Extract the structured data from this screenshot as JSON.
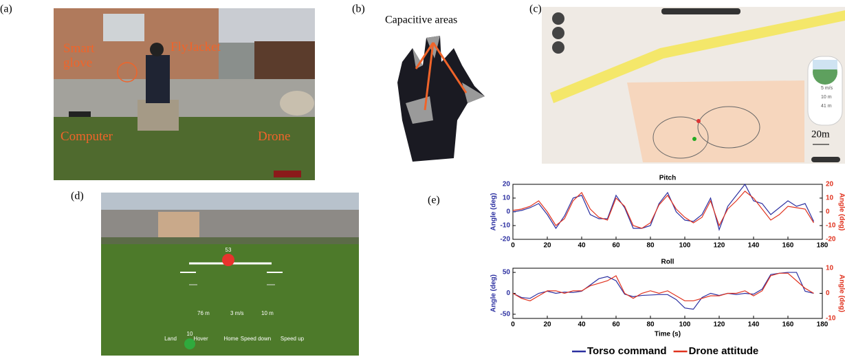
{
  "panels": {
    "a": {
      "label": "(a)",
      "annotations": [
        "Smart glove",
        "FlyJacket",
        "Computer",
        "Drone"
      ]
    },
    "b": {
      "label": "(b)",
      "annotation": "Capacitive areas"
    },
    "c": {
      "label": "(c)",
      "scale": "20m",
      "speed": "5 m/s",
      "altitude": "10 m",
      "distance": "41 m"
    },
    "d": {
      "label": "(d)",
      "pitch_value": "53",
      "distance": "76 m",
      "speed": "3 m/s",
      "altitude": "10 m",
      "counter": "10",
      "buttons": [
        "Land",
        "Hover",
        "Home",
        "Speed down",
        "Speed up"
      ]
    },
    "e": {
      "label": "(e)"
    }
  },
  "chart_data": [
    {
      "type": "line",
      "title": "Pitch",
      "ylabel": "Angle (deg)",
      "y2label": "Angle (deg)",
      "xlim": [
        0,
        180
      ],
      "xticks": [
        0,
        20,
        40,
        60,
        80,
        100,
        120,
        140,
        160,
        180
      ],
      "ylim": [
        -20,
        20
      ],
      "yticks": [
        -20,
        -10,
        0,
        10,
        20
      ],
      "y2lim": [
        -20,
        20
      ],
      "y2ticks": [
        -20,
        -10,
        0,
        10,
        20
      ],
      "x": [
        0,
        5,
        10,
        15,
        20,
        25,
        30,
        35,
        40,
        45,
        50,
        55,
        60,
        65,
        70,
        75,
        80,
        85,
        90,
        95,
        100,
        105,
        110,
        115,
        120,
        125,
        130,
        135,
        140,
        145,
        150,
        155,
        160,
        165,
        170,
        175
      ],
      "series": [
        {
          "name": "Torso command",
          "color": "#2b2fa0",
          "values": [
            0,
            1,
            3,
            6,
            -2,
            -12,
            -3,
            10,
            12,
            -2,
            -5,
            -5,
            12,
            3,
            -12,
            -12,
            -10,
            6,
            14,
            0,
            -6,
            -7,
            -2,
            10,
            -13,
            4,
            12,
            20,
            8,
            6,
            -2,
            3,
            8,
            4,
            6,
            -7
          ]
        },
        {
          "name": "Drone attitude",
          "color": "#e0321e",
          "axis": "y2",
          "values": [
            1,
            2,
            4,
            8,
            0,
            -10,
            -5,
            8,
            14,
            2,
            -4,
            -6,
            10,
            4,
            -10,
            -12,
            -8,
            5,
            12,
            2,
            -4,
            -8,
            -4,
            8,
            -10,
            2,
            8,
            15,
            10,
            2,
            -6,
            -2,
            4,
            3,
            2,
            -8
          ]
        }
      ]
    },
    {
      "type": "line",
      "title": "Roll",
      "ylabel": "Angle (deg)",
      "y2label": "Angle (deg)",
      "xlabel": "Time (s)",
      "xlim": [
        0,
        180
      ],
      "xticks": [
        0,
        20,
        40,
        60,
        80,
        100,
        120,
        140,
        160,
        180
      ],
      "ylim": [
        -60,
        60
      ],
      "yticks": [
        -50,
        0,
        50
      ],
      "y2lim": [
        -10,
        10
      ],
      "y2ticks": [
        -10,
        0,
        10
      ],
      "x": [
        0,
        5,
        10,
        15,
        20,
        25,
        30,
        35,
        40,
        45,
        50,
        55,
        60,
        65,
        70,
        75,
        80,
        85,
        90,
        95,
        100,
        105,
        110,
        115,
        120,
        125,
        130,
        135,
        140,
        145,
        150,
        155,
        160,
        165,
        170,
        175
      ],
      "series": [
        {
          "color": "#2b2fa0",
          "values": [
            0,
            -10,
            -12,
            0,
            5,
            0,
            3,
            2,
            5,
            20,
            35,
            40,
            30,
            -2,
            -8,
            -5,
            -4,
            -3,
            -3,
            -15,
            -35,
            -38,
            -10,
            0,
            -5,
            0,
            -3,
            0,
            -2,
            10,
            45,
            48,
            50,
            50,
            5,
            0
          ]
        },
        {
          "color": "#e0321e",
          "axis": "y2",
          "values": [
            0,
            -2,
            -3,
            -1,
            1,
            1,
            0,
            1,
            1,
            3,
            4,
            5,
            7,
            0,
            -2,
            0,
            1,
            0,
            1,
            -1,
            -3,
            -3,
            -2,
            -1,
            -1,
            0,
            0,
            1,
            -1,
            1,
            7,
            8,
            8,
            5,
            2,
            0
          ]
        }
      ]
    }
  ]
}
